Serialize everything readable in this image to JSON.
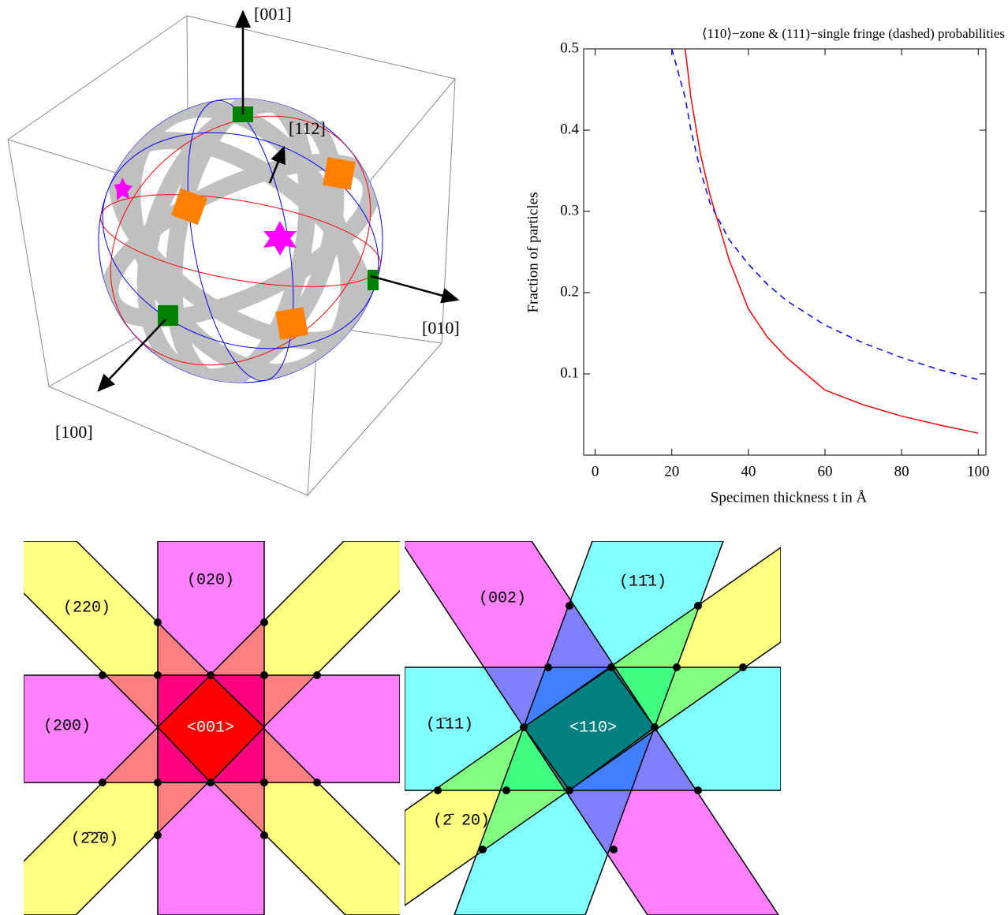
{
  "chart_data": {
    "type": "line",
    "title": "⟨110⟩−zone & (111)−single fringe (dashed) probabilities",
    "x_label": "Specimen thickness t in Å",
    "y_label": "Fraction of particles",
    "x": [
      20,
      23.5,
      25,
      27.5,
      30,
      35,
      40,
      45,
      50,
      60,
      70,
      80,
      90,
      100
    ],
    "series": [
      {
        "color": "#ff0000",
        "dash": false,
        "values": [
          null,
          0.5,
          0.44,
          0.37,
          0.32,
          0.24,
          0.18,
          0.145,
          0.12,
          0.08,
          0.062,
          0.048,
          0.037,
          0.027
        ]
      },
      {
        "color": "#0000ff",
        "dash": true,
        "values": [
          0.5,
          0.44,
          0.4,
          0.35,
          0.31,
          0.265,
          0.235,
          0.21,
          0.19,
          0.16,
          0.138,
          0.12,
          0.105,
          0.093
        ]
      }
    ],
    "xlim": [
      -3,
      102
    ],
    "xticks": [
      0,
      20,
      40,
      60,
      80,
      100
    ],
    "ylim": [
      0,
      0.5
    ],
    "yticks": [
      0.1,
      0.2,
      0.3,
      0.4,
      0.5
    ]
  },
  "sphere": {
    "axis_labels": [
      "[001]",
      "[112]",
      "[010]",
      "[100]"
    ]
  },
  "zone_001": {
    "band_labels": [
      "(020)",
      "(220)",
      "(200)",
      "(2̄2̄0)"
    ],
    "center_label": "<001>"
  },
  "zone_110": {
    "band_labels": [
      "(002)",
      "(11̄1)",
      "(1̄11)",
      "(2̄ 20)"
    ],
    "center_label": "<110>"
  }
}
